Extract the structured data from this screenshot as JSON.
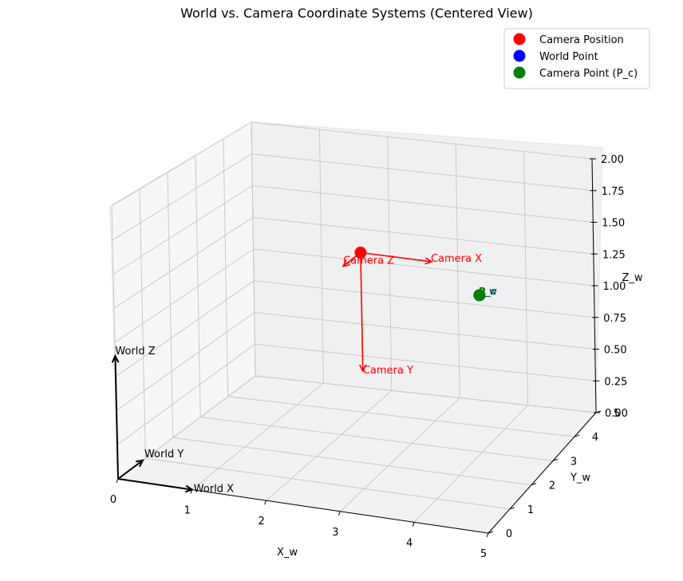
{
  "chart_data": {
    "type": "scatter",
    "projection": "3d",
    "title": "World vs. Camera Coordinate Systems (Centered View)",
    "xlabel": "X_w",
    "ylabel": "Y_w",
    "zlabel": "Z_w",
    "xlim": [
      0,
      5
    ],
    "ylim": [
      0,
      5
    ],
    "zlim": [
      0,
      2
    ],
    "grid": true,
    "legend_position": "top-right",
    "x_ticks": [
      "0",
      "1",
      "2",
      "3",
      "4",
      "5"
    ],
    "y_ticks": [
      "0",
      "1",
      "2",
      "3",
      "4",
      "5"
    ],
    "z_ticks": [
      "0.00",
      "0.25",
      "0.50",
      "0.75",
      "1.00",
      "1.25",
      "1.50",
      "1.75",
      "2.00"
    ],
    "series": [
      {
        "name": "Camera Position",
        "color": "#ff0000",
        "points": [
          [
            2.5,
            2.5,
            1.5
          ]
        ]
      },
      {
        "name": "World Point",
        "color": "#0000ff",
        "points": [
          [
            4,
            3,
            1.2
          ]
        ]
      },
      {
        "name": "Camera Point (P_c)",
        "color": "#008000",
        "points": [
          [
            4,
            3,
            1.2
          ]
        ]
      }
    ],
    "point_labels": [
      {
        "text": "P_w",
        "color": "#0000ff"
      },
      {
        "text": "P_c",
        "color": "#008000"
      }
    ],
    "world_axes": [
      {
        "label": "World X",
        "color": "#000000"
      },
      {
        "label": "World Y",
        "color": "#000000"
      },
      {
        "label": "World Z",
        "color": "#000000"
      }
    ],
    "camera_axes": [
      {
        "label": "Camera X",
        "color": "#ff0000"
      },
      {
        "label": "Camera Y",
        "color": "#ff0000"
      },
      {
        "label": "Camera Z",
        "color": "#ff0000"
      }
    ]
  }
}
